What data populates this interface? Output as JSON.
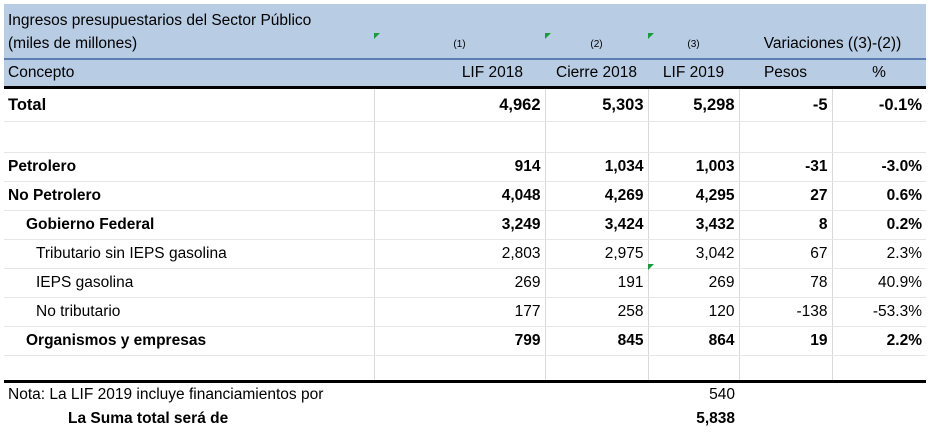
{
  "header": {
    "title": "Ingresos presupuestarios del Sector Público",
    "subtitle": "(miles de millones)",
    "notes": [
      "(1)",
      "(2)",
      "(3)"
    ],
    "variaciones": "Variaciones ((3)-(2))",
    "columns": [
      "Concepto",
      "LIF 2018",
      "Cierre 2018",
      "LIF 2019",
      "Pesos",
      "%"
    ]
  },
  "rows": [
    {
      "concepto": "Total",
      "lif2018": "4,962",
      "cierre2018": "5,303",
      "lif2019": "5,298",
      "pesos": "-5",
      "pct": "-0.1%"
    },
    {
      "concepto": "Petrolero",
      "lif2018": "914",
      "cierre2018": "1,034",
      "lif2019": "1,003",
      "pesos": "-31",
      "pct": "-3.0%"
    },
    {
      "concepto": "No Petrolero",
      "lif2018": "4,048",
      "cierre2018": "4,269",
      "lif2019": "4,295",
      "pesos": "27",
      "pct": "0.6%"
    },
    {
      "concepto": "Gobierno Federal",
      "lif2018": "3,249",
      "cierre2018": "3,424",
      "lif2019": "3,432",
      "pesos": "8",
      "pct": "0.2%"
    },
    {
      "concepto": "Tributario sin IEPS gasolina",
      "lif2018": "2,803",
      "cierre2018": "2,975",
      "lif2019": "3,042",
      "pesos": "67",
      "pct": "2.3%"
    },
    {
      "concepto": "IEPS gasolina",
      "lif2018": "269",
      "cierre2018": "191",
      "lif2019": "269",
      "pesos": "78",
      "pct": "40.9%"
    },
    {
      "concepto": "No tributario",
      "lif2018": "177",
      "cierre2018": "258",
      "lif2019": "120",
      "pesos": "-138",
      "pct": "-53.3%"
    },
    {
      "concepto": "Organismos y empresas",
      "lif2018": "799",
      "cierre2018": "845",
      "lif2019": "864",
      "pesos": "19",
      "pct": "2.2%"
    }
  ],
  "footer": {
    "nota_label": "Nota: La LIF 2019 incluye financiamientos por",
    "nota_value": "540",
    "suma_label": "La Suma total será de",
    "suma_value": "5,838"
  },
  "colors": {
    "header_bg": "#b8cce4",
    "indicator": "#1a9a3a"
  }
}
